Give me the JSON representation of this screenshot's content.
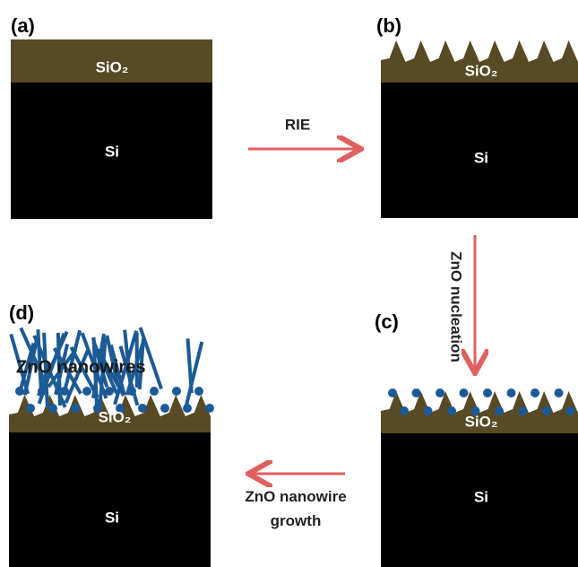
{
  "panels": [
    {
      "label": "(a)",
      "oxide": "SiO₂",
      "substrate": "Si"
    },
    {
      "label": "(b)",
      "oxide": "SiO₂",
      "substrate": "Si"
    },
    {
      "label": "(c)",
      "oxide": "SiO₂",
      "substrate": "Si"
    },
    {
      "label": "(d)",
      "oxide": "SiO₂",
      "substrate": "Si",
      "wires": "ZnO nanowires"
    }
  ],
  "steps": [
    {
      "label": "RIE"
    },
    {
      "label": "ZnO nucleation"
    },
    {
      "label": "ZnO nanowire growth"
    }
  ]
}
